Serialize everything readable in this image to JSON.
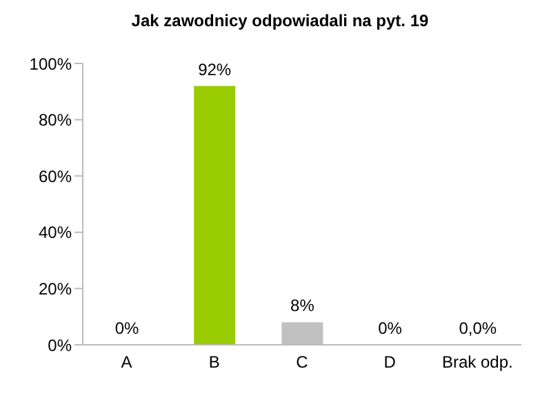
{
  "chart_data": {
    "type": "bar",
    "title": "Jak zawodnicy odpowiadali na pyt. 19",
    "categories": [
      "A",
      "B",
      "C",
      "D",
      "Brak odp."
    ],
    "values": [
      0,
      92,
      8,
      0,
      0
    ],
    "colors": [
      "#808080",
      "#99cc00",
      "#c0c0c0",
      "#808080",
      "#808080"
    ],
    "value_labels": [
      "0%",
      "92%",
      "8%",
      "0%",
      "0,0%"
    ],
    "ylim": [
      0,
      100
    ],
    "yticks": [
      {
        "value": 0,
        "label": "0%"
      },
      {
        "value": 20,
        "label": "20%"
      },
      {
        "value": 40,
        "label": "40%"
      },
      {
        "value": 60,
        "label": "60%"
      },
      {
        "value": 80,
        "label": "80%"
      },
      {
        "value": 100,
        "label": "100%"
      }
    ],
    "grid": false
  }
}
